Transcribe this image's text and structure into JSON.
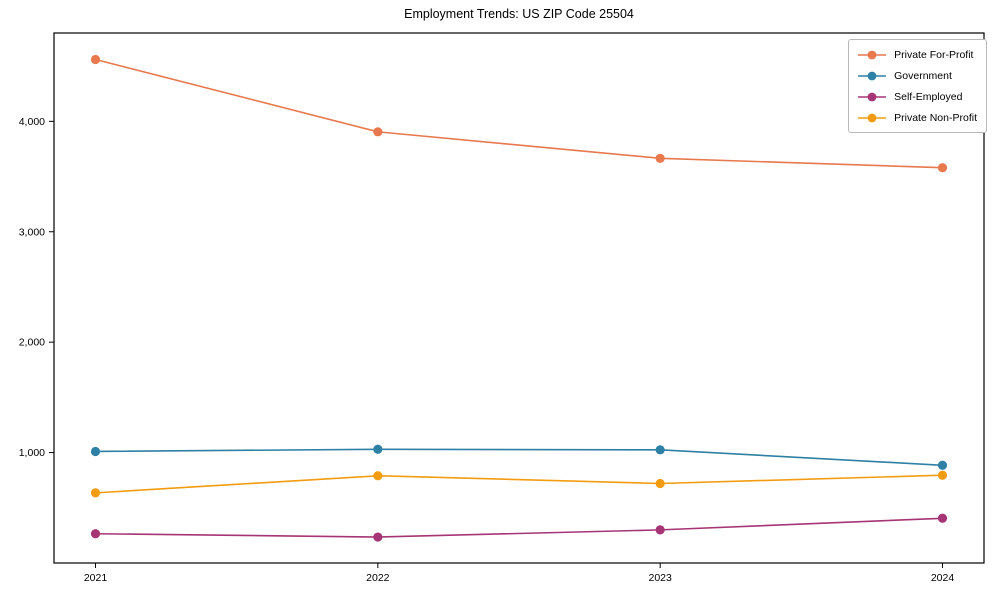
{
  "chart_data": {
    "type": "line",
    "title": "Employment Trends: US ZIP Code 25504",
    "x": [
      "2021",
      "2022",
      "2023",
      "2024"
    ],
    "series": [
      {
        "name": "Private For-Profit",
        "color": "#e8784d",
        "values": [
          4560,
          3905,
          3665,
          3580
        ]
      },
      {
        "name": "Government",
        "color": "#2e80a5",
        "values": [
          1010,
          1030,
          1025,
          885
        ]
      },
      {
        "name": "Self-Employed",
        "color": "#a63576",
        "values": [
          265,
          235,
          300,
          405
        ]
      },
      {
        "name": "Private Non-Profit",
        "color": "#f39c12",
        "values": [
          635,
          790,
          720,
          795
        ]
      }
    ],
    "xlabel": "",
    "ylabel": "",
    "ylim": [
      0,
      4800
    ],
    "yticks": [
      {
        "value": 1000,
        "label": "1,000"
      },
      {
        "value": 2000,
        "label": "2,000"
      },
      {
        "value": 3000,
        "label": "3,000"
      },
      {
        "value": 4000,
        "label": "4,000"
      }
    ],
    "grid": false,
    "legend_position": "upper right",
    "axis_color": "#000000",
    "background_color": "#ffffff"
  }
}
